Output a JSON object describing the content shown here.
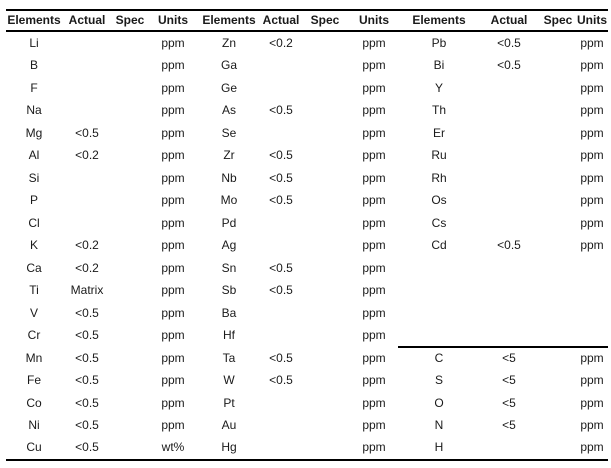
{
  "table": {
    "header_row": [
      "Elements",
      "Actual",
      "Spec",
      "Units",
      "Elements",
      "Actual",
      "Spec",
      "Units",
      "Elements",
      "Actual",
      "Spec",
      "Units"
    ],
    "groups": [
      {
        "rows": [
          {
            "element": "Li",
            "actual": "",
            "spec": "",
            "units": "ppm"
          },
          {
            "element": "B",
            "actual": "",
            "spec": "",
            "units": "ppm"
          },
          {
            "element": "F",
            "actual": "",
            "spec": "",
            "units": "ppm"
          },
          {
            "element": "Na",
            "actual": "",
            "spec": "",
            "units": "ppm"
          },
          {
            "element": "Mg",
            "actual": "<0.5",
            "spec": "",
            "units": "ppm"
          },
          {
            "element": "Al",
            "actual": "<0.2",
            "spec": "",
            "units": "ppm"
          },
          {
            "element": "Si",
            "actual": "",
            "spec": "",
            "units": "ppm"
          },
          {
            "element": "P",
            "actual": "",
            "spec": "",
            "units": "ppm"
          },
          {
            "element": "Cl",
            "actual": "",
            "spec": "",
            "units": "ppm"
          },
          {
            "element": "K",
            "actual": "<0.2",
            "spec": "",
            "units": "ppm"
          },
          {
            "element": "Ca",
            "actual": "<0.2",
            "spec": "",
            "units": "ppm"
          },
          {
            "element": "Ti",
            "actual": "Matrix",
            "spec": "",
            "units": "ppm"
          },
          {
            "element": "V",
            "actual": "<0.5",
            "spec": "",
            "units": "ppm"
          },
          {
            "element": "Cr",
            "actual": "<0.5",
            "spec": "",
            "units": "ppm"
          },
          {
            "element": "Mn",
            "actual": "<0.5",
            "spec": "",
            "units": "ppm"
          },
          {
            "element": "Fe",
            "actual": "<0.5",
            "spec": "",
            "units": "ppm"
          },
          {
            "element": "Co",
            "actual": "<0.5",
            "spec": "",
            "units": "ppm"
          },
          {
            "element": "Ni",
            "actual": "<0.5",
            "spec": "",
            "units": "ppm"
          },
          {
            "element": "Cu",
            "actual": "<0.5",
            "spec": "",
            "units": "wt%"
          }
        ]
      },
      {
        "rows": [
          {
            "element": "Zn",
            "actual": "<0.2",
            "spec": "",
            "units": "ppm"
          },
          {
            "element": "Ga",
            "actual": "",
            "spec": "",
            "units": "ppm"
          },
          {
            "element": "Ge",
            "actual": "",
            "spec": "",
            "units": "ppm"
          },
          {
            "element": "As",
            "actual": "<0.5",
            "spec": "",
            "units": "ppm"
          },
          {
            "element": "Se",
            "actual": "",
            "spec": "",
            "units": "ppm"
          },
          {
            "element": "Zr",
            "actual": "<0.5",
            "spec": "",
            "units": "ppm"
          },
          {
            "element": "Nb",
            "actual": "<0.5",
            "spec": "",
            "units": "ppm"
          },
          {
            "element": "Mo",
            "actual": "<0.5",
            "spec": "",
            "units": "ppm"
          },
          {
            "element": "Pd",
            "actual": "",
            "spec": "",
            "units": "ppm"
          },
          {
            "element": "Ag",
            "actual": "",
            "spec": "",
            "units": "ppm"
          },
          {
            "element": "Sn",
            "actual": "<0.5",
            "spec": "",
            "units": "ppm"
          },
          {
            "element": "Sb",
            "actual": "<0.5",
            "spec": "",
            "units": "ppm"
          },
          {
            "element": "Ba",
            "actual": "",
            "spec": "",
            "units": "ppm"
          },
          {
            "element": "Hf",
            "actual": "",
            "spec": "",
            "units": "ppm"
          },
          {
            "element": "Ta",
            "actual": "<0.5",
            "spec": "",
            "units": "ppm"
          },
          {
            "element": "W",
            "actual": "<0.5",
            "spec": "",
            "units": "ppm"
          },
          {
            "element": "Pt",
            "actual": "",
            "spec": "",
            "units": "ppm"
          },
          {
            "element": "Au",
            "actual": "",
            "spec": "",
            "units": "ppm"
          },
          {
            "element": "Hg",
            "actual": "",
            "spec": "",
            "units": "ppm"
          }
        ]
      },
      {
        "rows": [
          {
            "element": "Pb",
            "actual": "<0.5",
            "spec": "",
            "units": "ppm"
          },
          {
            "element": "Bi",
            "actual": "<0.5",
            "spec": "",
            "units": "ppm"
          },
          {
            "element": "Y",
            "actual": "",
            "spec": "",
            "units": "ppm"
          },
          {
            "element": "Th",
            "actual": "",
            "spec": "",
            "units": "ppm"
          },
          {
            "element": "Er",
            "actual": "",
            "spec": "",
            "units": "ppm"
          },
          {
            "element": "Ru",
            "actual": "",
            "spec": "",
            "units": "ppm"
          },
          {
            "element": "Rh",
            "actual": "",
            "spec": "",
            "units": "ppm"
          },
          {
            "element": "Os",
            "actual": "",
            "spec": "",
            "units": "ppm"
          },
          {
            "element": "Cs",
            "actual": "",
            "spec": "",
            "units": "ppm"
          },
          {
            "element": "Cd",
            "actual": "<0.5",
            "spec": "",
            "units": "ppm"
          },
          {
            "element": "",
            "actual": "",
            "spec": "",
            "units": ""
          },
          {
            "element": "",
            "actual": "",
            "spec": "",
            "units": ""
          },
          {
            "element": "",
            "actual": "",
            "spec": "",
            "units": ""
          },
          {
            "element": "",
            "actual": "",
            "spec": "",
            "units": ""
          },
          {
            "element": "C",
            "actual": "<5",
            "spec": "",
            "units": "ppm"
          },
          {
            "element": "S",
            "actual": "<5",
            "spec": "",
            "units": "ppm"
          },
          {
            "element": "O",
            "actual": "<5",
            "spec": "",
            "units": "ppm"
          },
          {
            "element": "N",
            "actual": "<5",
            "spec": "",
            "units": "ppm"
          },
          {
            "element": "H",
            "actual": "",
            "spec": "",
            "units": "ppm"
          }
        ]
      }
    ]
  },
  "colors": {
    "text": "#1a1a1a",
    "rule_line": "#000000",
    "background": "#ffffff"
  }
}
